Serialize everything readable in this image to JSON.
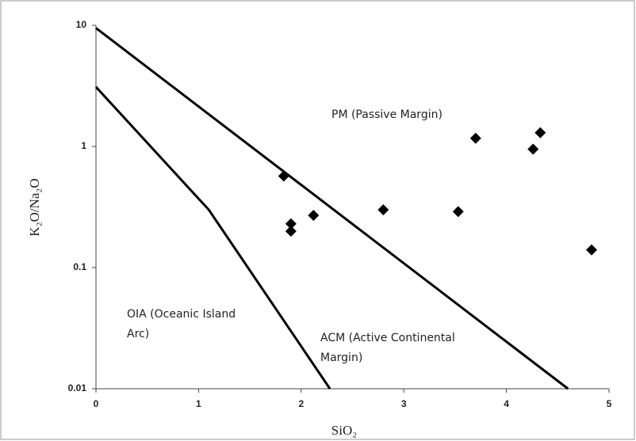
{
  "chart_data": {
    "type": "scatter",
    "x_label": "SiO₂",
    "y_label": "K₂O/Na₂O",
    "xlim": [
      0,
      5
    ],
    "xticks": [
      0,
      1,
      2,
      3,
      4,
      5
    ],
    "ylim": [
      0.01,
      10
    ],
    "yticks": [
      0.01,
      0.1,
      1,
      10
    ],
    "y_scale": "log",
    "grid": false,
    "x": [
      1.83,
      1.9,
      1.9,
      2.12,
      2.8,
      3.53,
      3.7,
      4.26,
      4.33,
      4.83
    ],
    "values": [
      0.57,
      0.23,
      0.2,
      0.27,
      0.3,
      0.29,
      1.17,
      0.95,
      1.3,
      0.14
    ],
    "color": "#000000",
    "lines": [
      {
        "x": [
          0,
          4.6
        ],
        "y": [
          9.5,
          0.01
        ],
        "color": "#000000"
      },
      {
        "x": [
          0,
          1.1,
          2.28
        ],
        "y": [
          3.1,
          0.3,
          0.01
        ],
        "color": "#000000"
      }
    ],
    "annotations": [
      {
        "lines": [
          "PM (Passive Margin)"
        ]
      },
      {
        "lines": [
          "OIA (Oceanic Island",
          "Arc)"
        ]
      },
      {
        "lines": [
          "ACM (Active Continental",
          "Margin)"
        ]
      }
    ]
  }
}
